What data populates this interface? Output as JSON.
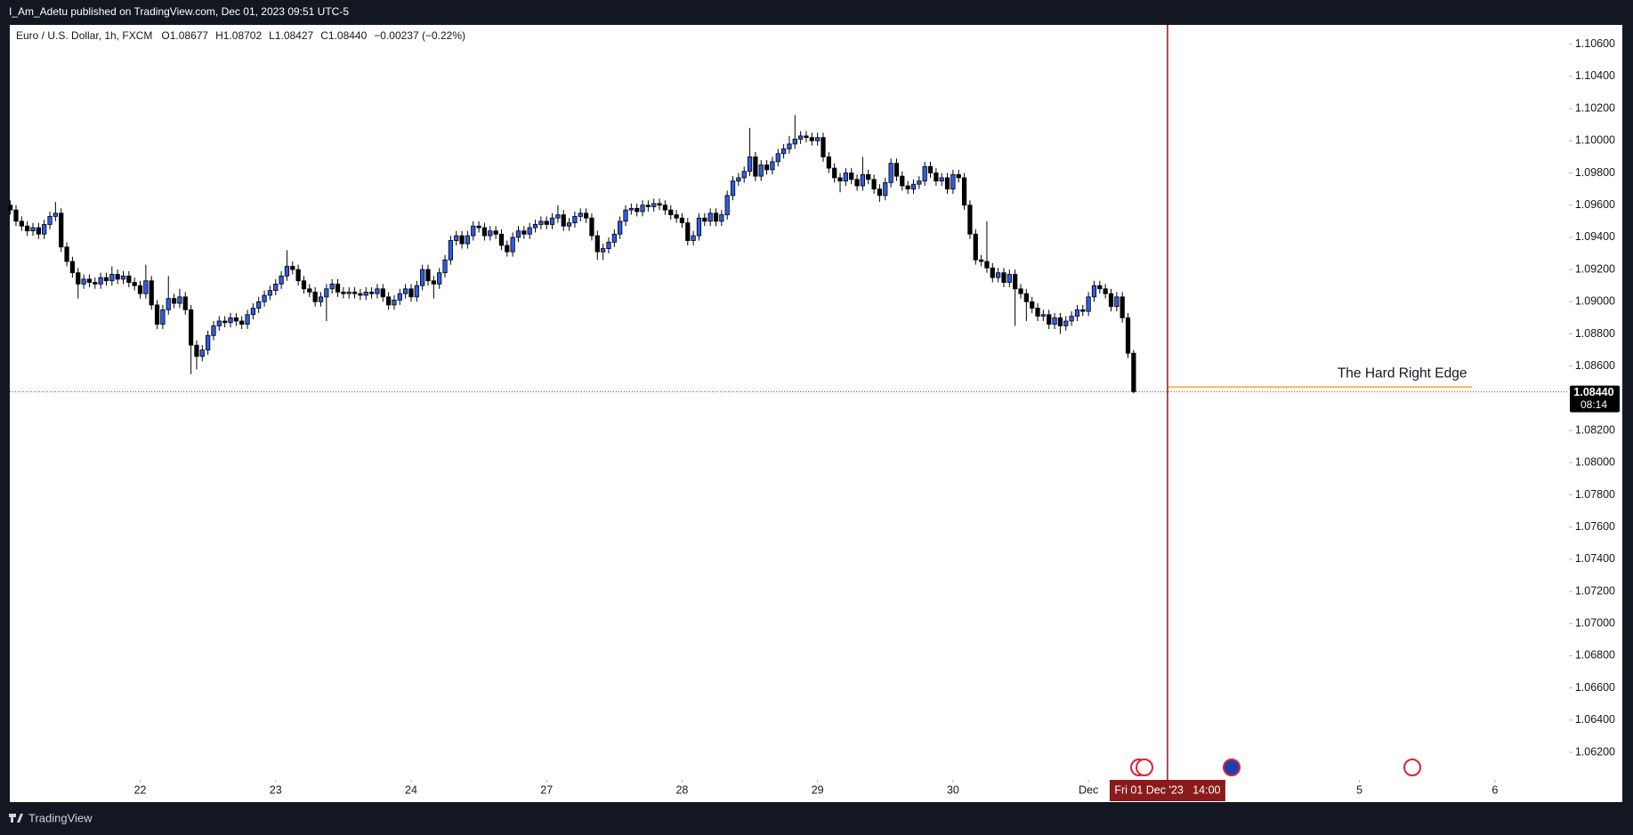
{
  "header": {
    "publisher": "I_Am_Adetu published on TradingView.com, Dec 01, 2023 09:51 UTC-5"
  },
  "footer": {
    "brand": "TradingView"
  },
  "chart_data": {
    "type": "candlestick",
    "symbol": "Euro / U.S. Dollar, 1h, FXCM",
    "ohlc_legend": [
      "O1.08677",
      "H1.08702",
      "L1.08427",
      "C1.08440",
      "−0.00237 (−0.22%)"
    ],
    "up_color": "#2f5ce0",
    "down_color": "#000000",
    "grid": false,
    "xlim": [
      -0.1,
      275.8
    ],
    "xticks": [
      {
        "value": 23,
        "label": "22"
      },
      {
        "value": 47,
        "label": "23"
      },
      {
        "value": 71,
        "label": "24"
      },
      {
        "value": 95,
        "label": "27"
      },
      {
        "value": 119,
        "label": "28"
      },
      {
        "value": 143,
        "label": "29"
      },
      {
        "value": 167,
        "label": "30"
      },
      {
        "value": 191,
        "label": "Dec"
      },
      {
        "value": 239,
        "label": "5"
      },
      {
        "value": 263,
        "label": "6"
      }
    ],
    "ylim": [
      1.0604,
      1.1072
    ],
    "yticks": [
      {
        "value": 1.062,
        "label": "1.06200"
      },
      {
        "value": 1.064,
        "label": "1.06400"
      },
      {
        "value": 1.066,
        "label": "1.06600"
      },
      {
        "value": 1.068,
        "label": "1.06800"
      },
      {
        "value": 1.07,
        "label": "1.07000"
      },
      {
        "value": 1.072,
        "label": "1.07200"
      },
      {
        "value": 1.074,
        "label": "1.07400"
      },
      {
        "value": 1.076,
        "label": "1.07600"
      },
      {
        "value": 1.078,
        "label": "1.07800"
      },
      {
        "value": 1.08,
        "label": "1.08000"
      },
      {
        "value": 1.082,
        "label": "1.08200"
      },
      {
        "value": 1.086,
        "label": "1.08600"
      },
      {
        "value": 1.088,
        "label": "1.08800"
      },
      {
        "value": 1.09,
        "label": "1.09000"
      },
      {
        "value": 1.092,
        "label": "1.09200"
      },
      {
        "value": 1.094,
        "label": "1.09400"
      },
      {
        "value": 1.096,
        "label": "1.09600"
      },
      {
        "value": 1.098,
        "label": "1.09800"
      },
      {
        "value": 1.1,
        "label": "1.10000"
      },
      {
        "value": 1.102,
        "label": "1.10200"
      },
      {
        "value": 1.104,
        "label": "1.10400"
      },
      {
        "value": 1.106,
        "label": "1.10600"
      }
    ],
    "last_price": {
      "value": 1.0844,
      "label": "1.08440",
      "countdown": "08:14"
    },
    "crosshair": {
      "value": 205,
      "label": "Fri 01 Dec '23   14:00",
      "color": "#8b1a1a"
    },
    "annotation": {
      "text": "The Hard Right Edge",
      "price": 1.0847,
      "x_range": [
        205,
        259
      ],
      "color": "#f5a623"
    },
    "series": {
      "open": [
        1.096,
        1.0957,
        1.095,
        1.0947,
        1.0944,
        1.0946,
        1.0942,
        1.0948,
        1.0953,
        1.0955,
        1.0934,
        1.0925,
        1.0918,
        1.0911,
        1.0914,
        1.0912,
        1.0911,
        1.0915,
        1.0913,
        1.0917,
        1.0914,
        1.0916,
        1.0912,
        1.091,
        1.0905,
        1.0913,
        1.0898,
        1.0886,
        1.0895,
        1.0902,
        1.0899,
        1.0903,
        1.0895,
        1.0873,
        1.0866,
        1.087,
        1.0879,
        1.0885,
        1.0888,
        1.0887,
        1.089,
        1.0888,
        1.0886,
        1.0892,
        1.0896,
        1.09,
        1.0904,
        1.0907,
        1.0911,
        1.0916,
        1.0922,
        1.092,
        1.0913,
        1.0908,
        1.0906,
        1.09,
        1.0903,
        1.0908,
        1.0911,
        1.0906,
        1.0905,
        1.0906,
        1.0905,
        1.0904,
        1.0906,
        1.0905,
        1.0908,
        1.0903,
        1.0898,
        1.0901,
        1.0905,
        1.0908,
        1.0903,
        1.091,
        1.092,
        1.0913,
        1.0911,
        1.0918,
        1.0926,
        1.0938,
        1.0941,
        1.0936,
        1.0941,
        1.0947,
        1.0946,
        1.0941,
        1.0944,
        1.0942,
        1.0935,
        1.0931,
        1.094,
        1.0944,
        1.0942,
        1.0946,
        1.0948,
        1.095,
        1.0948,
        1.0952,
        1.0954,
        1.0947,
        1.0949,
        1.0953,
        1.0955,
        1.0952,
        1.0941,
        1.0931,
        1.0933,
        1.0937,
        1.0942,
        1.095,
        1.0957,
        1.0958,
        1.0956,
        1.096,
        1.0959,
        1.0961,
        1.096,
        1.0957,
        1.0954,
        1.0952,
        1.0949,
        1.0938,
        1.0941,
        1.0952,
        1.095,
        1.0955,
        1.095,
        1.0954,
        1.0966,
        1.0975,
        1.0977,
        1.0981,
        1.099,
        1.0978,
        1.0985,
        1.0982,
        1.0987,
        1.0992,
        1.0995,
        1.0998,
        1.1001,
        1.1003,
        1.1002,
        1.1,
        1.1002,
        1.099,
        1.0983,
        1.0977,
        1.0975,
        1.098,
        1.0976,
        1.0972,
        1.0979,
        1.0976,
        1.097,
        1.0966,
        1.0974,
        1.0986,
        1.0978,
        1.0972,
        1.097,
        1.0973,
        1.0975,
        1.0984,
        1.098,
        1.0975,
        1.0977,
        1.097,
        1.0979,
        1.0977,
        1.096,
        1.0942,
        1.0926,
        1.0925,
        1.0921,
        1.0915,
        1.0918,
        1.0912,
        1.0917,
        1.0908,
        1.0905,
        1.09,
        1.0896,
        1.0891,
        1.0892,
        1.0886,
        1.089,
        1.0885,
        1.0888,
        1.0891,
        1.0895,
        1.0894,
        1.0903,
        1.091,
        1.0908,
        1.0905,
        1.0897,
        1.0903,
        1.089,
        1.0868
      ],
      "high": [
        1.0963,
        1.096,
        1.0953,
        1.095,
        1.0949,
        1.0949,
        1.0951,
        1.0956,
        1.0962,
        1.0958,
        1.0937,
        1.0928,
        1.0921,
        1.0917,
        1.0917,
        1.0915,
        1.0918,
        1.0918,
        1.0922,
        1.092,
        1.0919,
        1.0919,
        1.0915,
        1.0913,
        1.0923,
        1.0916,
        1.0901,
        1.0898,
        1.0916,
        1.0905,
        1.0908,
        1.0906,
        1.0898,
        1.0876,
        1.0873,
        1.0882,
        1.0888,
        1.0891,
        1.0891,
        1.0893,
        1.0893,
        1.0891,
        1.0895,
        1.0899,
        1.0903,
        1.0907,
        1.091,
        1.0914,
        1.0919,
        1.0932,
        1.0925,
        1.0923,
        1.0916,
        1.0911,
        1.0909,
        1.0906,
        1.0911,
        1.0914,
        1.0914,
        1.0909,
        1.0909,
        1.0909,
        1.0908,
        1.0909,
        1.0909,
        1.0911,
        1.0911,
        1.0906,
        1.0904,
        1.0908,
        1.0911,
        1.0911,
        1.0913,
        1.0923,
        1.0923,
        1.0916,
        1.0921,
        1.0929,
        1.0941,
        1.0944,
        1.0944,
        1.0944,
        1.095,
        1.095,
        1.0949,
        1.0947,
        1.0947,
        1.0945,
        1.0938,
        1.0943,
        1.0947,
        1.0947,
        1.0949,
        1.0951,
        1.0953,
        1.0953,
        1.0955,
        1.096,
        1.0957,
        1.0952,
        1.0956,
        1.0958,
        1.0958,
        1.0955,
        1.0944,
        1.0936,
        1.094,
        1.0945,
        1.0953,
        1.096,
        1.0961,
        1.0961,
        1.0963,
        1.0963,
        1.0964,
        1.0964,
        1.0963,
        1.096,
        1.0957,
        1.0955,
        1.0952,
        1.0944,
        1.0955,
        1.0955,
        1.0958,
        1.0958,
        1.0957,
        1.0969,
        1.0978,
        1.098,
        1.0984,
        1.1008,
        1.0993,
        1.0988,
        1.0988,
        1.099,
        1.0995,
        1.0998,
        1.1003,
        1.1016,
        1.1006,
        1.1006,
        1.1005,
        1.1005,
        1.1005,
        1.0993,
        1.0986,
        1.098,
        1.0983,
        1.0983,
        1.0979,
        1.099,
        1.0982,
        1.0979,
        1.0973,
        1.0977,
        1.0989,
        1.0989,
        1.0981,
        1.0975,
        1.0976,
        1.0978,
        1.0987,
        1.0987,
        1.0983,
        1.098,
        1.098,
        1.0982,
        1.0982,
        1.098,
        1.0963,
        1.0945,
        1.0929,
        1.095,
        1.0924,
        1.0921,
        1.0921,
        1.092,
        1.092,
        1.0911,
        1.0908,
        1.0903,
        1.0899,
        1.0895,
        1.0895,
        1.0893,
        1.0893,
        1.0891,
        1.0894,
        1.0898,
        1.0898,
        1.0906,
        1.0913,
        1.0913,
        1.0911,
        1.0908,
        1.0906,
        1.0906,
        1.0893,
        1.087
      ],
      "low": [
        1.0954,
        1.0947,
        1.0944,
        1.0941,
        1.0941,
        1.0939,
        1.0939,
        1.0945,
        1.095,
        1.0931,
        1.0922,
        1.0915,
        1.0902,
        1.0908,
        1.0909,
        1.0908,
        1.0908,
        1.091,
        1.091,
        1.0911,
        1.0911,
        1.0909,
        1.0907,
        1.0902,
        1.0902,
        1.0895,
        1.0883,
        1.0883,
        1.0892,
        1.0896,
        1.0896,
        1.0892,
        1.0855,
        1.0858,
        1.0863,
        1.0867,
        1.0876,
        1.0882,
        1.0884,
        1.0884,
        1.0885,
        1.0883,
        1.0883,
        1.0889,
        1.0893,
        1.0897,
        1.0901,
        1.0904,
        1.0908,
        1.0913,
        1.0917,
        1.091,
        1.0905,
        1.0903,
        1.0897,
        1.0897,
        1.0888,
        1.0905,
        1.0903,
        1.0902,
        1.0902,
        1.0902,
        1.0901,
        1.0901,
        1.0902,
        1.0902,
        1.09,
        1.0895,
        1.0895,
        1.0898,
        1.0902,
        1.09,
        1.09,
        1.0907,
        1.091,
        1.0902,
        1.0908,
        1.0915,
        1.0923,
        1.0935,
        1.0933,
        1.0933,
        1.0938,
        1.0943,
        1.0938,
        1.0938,
        1.0939,
        1.0932,
        1.0928,
        1.0928,
        1.0937,
        1.0939,
        1.0939,
        1.0943,
        1.0945,
        1.0945,
        1.0945,
        1.0949,
        1.0944,
        1.0944,
        1.0946,
        1.095,
        1.0949,
        1.0938,
        1.0926,
        1.0926,
        1.093,
        1.0934,
        1.0939,
        1.0947,
        1.0954,
        1.0953,
        1.0953,
        1.0956,
        1.0956,
        1.0957,
        1.0954,
        1.0951,
        1.0949,
        1.0946,
        1.0935,
        1.0935,
        1.0938,
        1.0947,
        1.0947,
        1.0947,
        1.0947,
        1.0951,
        1.0963,
        1.0972,
        1.0974,
        1.0978,
        1.0975,
        1.0975,
        1.0979,
        1.0979,
        1.0984,
        1.0989,
        1.0992,
        1.0995,
        1.0998,
        1.0999,
        1.0997,
        1.0997,
        1.0987,
        1.098,
        1.0974,
        1.0968,
        1.0972,
        1.0973,
        1.0969,
        1.0969,
        1.0973,
        1.0967,
        1.0962,
        1.0963,
        1.0971,
        1.0975,
        1.0969,
        1.0967,
        1.0967,
        1.097,
        1.0972,
        1.0977,
        1.0972,
        1.0972,
        1.0967,
        1.0967,
        1.0974,
        1.0957,
        1.0939,
        1.0923,
        1.0922,
        1.0918,
        1.0912,
        1.0912,
        1.0909,
        1.0909,
        1.0885,
        1.0902,
        1.0888,
        1.0893,
        1.0888,
        1.0888,
        1.0883,
        1.0883,
        1.088,
        1.0882,
        1.0885,
        1.0888,
        1.0891,
        1.0891,
        1.09,
        1.0905,
        1.0902,
        1.0894,
        1.0894,
        1.0887,
        1.0865,
        1.0843
      ],
      "close": [
        1.0957,
        1.095,
        1.0947,
        1.0944,
        1.0946,
        1.0942,
        1.0948,
        1.0953,
        1.0955,
        1.0934,
        1.0925,
        1.0918,
        1.0911,
        1.0914,
        1.0912,
        1.0911,
        1.0915,
        1.0913,
        1.0917,
        1.0914,
        1.0916,
        1.0912,
        1.091,
        1.0905,
        1.0913,
        1.0898,
        1.0886,
        1.0895,
        1.0902,
        1.0899,
        1.0903,
        1.0895,
        1.0873,
        1.0866,
        1.087,
        1.0879,
        1.0885,
        1.0888,
        1.0887,
        1.089,
        1.0888,
        1.0886,
        1.0892,
        1.0896,
        1.09,
        1.0904,
        1.0907,
        1.0911,
        1.0916,
        1.0922,
        1.092,
        1.0913,
        1.0908,
        1.0906,
        1.09,
        1.0903,
        1.0908,
        1.0911,
        1.0906,
        1.0905,
        1.0906,
        1.0905,
        1.0904,
        1.0906,
        1.0905,
        1.0908,
        1.0903,
        1.0898,
        1.0901,
        1.0905,
        1.0908,
        1.0903,
        1.091,
        1.092,
        1.0913,
        1.0911,
        1.0918,
        1.0926,
        1.0938,
        1.0941,
        1.0936,
        1.0941,
        1.0947,
        1.0946,
        1.0941,
        1.0944,
        1.0942,
        1.0935,
        1.0931,
        1.094,
        1.0944,
        1.0942,
        1.0946,
        1.0948,
        1.095,
        1.0948,
        1.0952,
        1.0954,
        1.0947,
        1.0949,
        1.0953,
        1.0955,
        1.0952,
        1.0941,
        1.0931,
        1.0933,
        1.0937,
        1.0942,
        1.095,
        1.0957,
        1.0958,
        1.0956,
        1.096,
        1.0959,
        1.0961,
        1.096,
        1.0957,
        1.0954,
        1.0952,
        1.0949,
        1.0938,
        1.0941,
        1.0952,
        1.095,
        1.0955,
        1.095,
        1.0954,
        1.0966,
        1.0975,
        1.0977,
        1.0981,
        1.099,
        1.0978,
        1.0985,
        1.0982,
        1.0987,
        1.0992,
        1.0995,
        1.0998,
        1.1001,
        1.1003,
        1.1002,
        1.1,
        1.1002,
        1.099,
        1.0983,
        1.0977,
        1.0975,
        1.098,
        1.0976,
        1.0972,
        1.0979,
        1.0976,
        1.097,
        1.0966,
        1.0974,
        1.0986,
        1.0978,
        1.0972,
        1.097,
        1.0973,
        1.0975,
        1.0984,
        1.098,
        1.0975,
        1.0977,
        1.097,
        1.0979,
        1.0977,
        1.096,
        1.0942,
        1.0926,
        1.0925,
        1.0921,
        1.0915,
        1.0918,
        1.0912,
        1.0917,
        1.0908,
        1.0905,
        1.09,
        1.0896,
        1.0891,
        1.0892,
        1.0886,
        1.089,
        1.0885,
        1.0888,
        1.0891,
        1.0895,
        1.0894,
        1.0903,
        1.091,
        1.0908,
        1.0905,
        1.0897,
        1.0903,
        1.089,
        1.0868,
        1.0844
      ]
    }
  }
}
